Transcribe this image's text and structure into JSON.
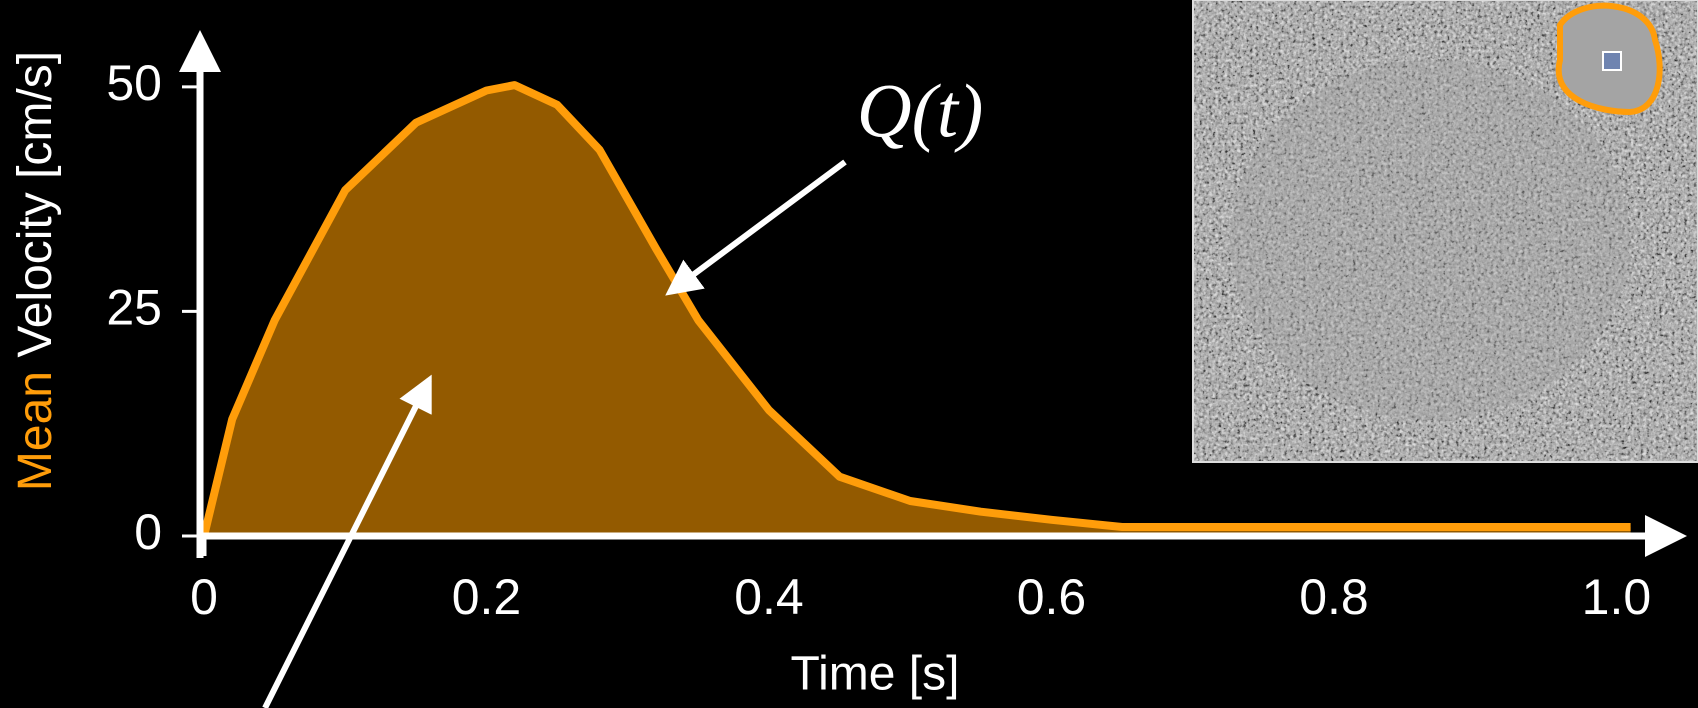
{
  "chart_data": {
    "type": "area",
    "xlabel": "Time [s]",
    "ylabel": {
      "highlight": "Mean",
      "text": "Velocity [cm/s]"
    },
    "annotation": "Q(t)",
    "x": [
      0,
      0.02,
      0.05,
      0.1,
      0.15,
      0.2,
      0.22,
      0.25,
      0.28,
      0.32,
      0.35,
      0.4,
      0.45,
      0.5,
      0.55,
      0.6,
      0.65,
      0.7,
      0.8,
      0.9,
      1.01
    ],
    "values": [
      0,
      13,
      24,
      38.5,
      46,
      49.6,
      50.2,
      48,
      43,
      32,
      24,
      14,
      6.6,
      3.9,
      2.7,
      1.8,
      1,
      1,
      1,
      1,
      1
    ],
    "color": "#ff9d0a",
    "fill_color": "#935a00",
    "highlight_color": "#ff9d0a",
    "xlim": [
      0,
      1.045
    ],
    "ylim": [
      0,
      58
    ],
    "xticks": [
      0,
      0.2,
      0.4,
      0.6,
      0.8,
      {
        "value": 1,
        "label": "1.0"
      }
    ],
    "yticks": [
      0,
      25,
      50
    ],
    "grid": false
  }
}
